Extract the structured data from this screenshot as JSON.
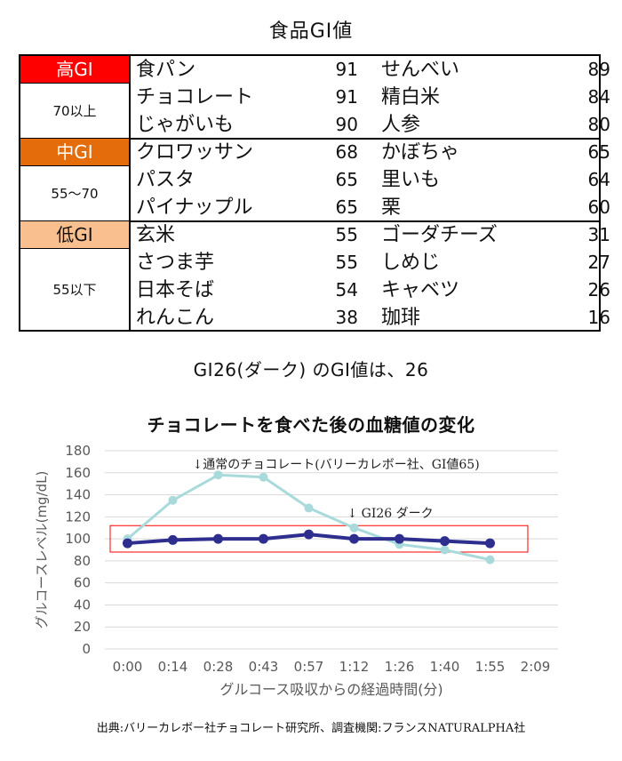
{
  "table": {
    "title": "食品GI値",
    "bands": [
      {
        "label": "高GI",
        "range": "70以上",
        "color": "#ff0000",
        "text_color": "#ffffff",
        "rows": [
          [
            {
              "food": "食パン",
              "gi": "91"
            },
            {
              "food": "せんべい",
              "gi": "89"
            }
          ],
          [
            {
              "food": "チョコレート",
              "gi": "91"
            },
            {
              "food": "精白米",
              "gi": "84"
            }
          ],
          [
            {
              "food": "じゃがいも",
              "gi": "90"
            },
            {
              "food": "人参",
              "gi": "80"
            }
          ]
        ]
      },
      {
        "label": "中GI",
        "range": "55〜70",
        "color": "#e46c0a",
        "text_color": "#ffffff",
        "rows": [
          [
            {
              "food": "クロワッサン",
              "gi": "68"
            },
            {
              "food": "かぼちゃ",
              "gi": "65"
            }
          ],
          [
            {
              "food": "パスタ",
              "gi": "65"
            },
            {
              "food": "里いも",
              "gi": "64"
            }
          ],
          [
            {
              "food": "パイナップル",
              "gi": "65"
            },
            {
              "food": "栗",
              "gi": "60"
            }
          ]
        ]
      },
      {
        "label": "低GI",
        "range": "55以下",
        "color": "#fabf8f",
        "text_color": "#111111",
        "rows": [
          [
            {
              "food": "玄米",
              "gi": "55"
            },
            {
              "food": "ゴーダチーズ",
              "gi": "31"
            }
          ],
          [
            {
              "food": "さつま芋",
              "gi": "55"
            },
            {
              "food": "しめじ",
              "gi": "27"
            }
          ],
          [
            {
              "food": "日本そば",
              "gi": "54"
            },
            {
              "food": "キャベツ",
              "gi": "26"
            }
          ],
          [
            {
              "food": "れんこん",
              "gi": "38"
            },
            {
              "food": "珈琲",
              "gi": "16"
            }
          ]
        ]
      }
    ]
  },
  "note": "GI26(ダーク) のGI値は、26",
  "chart_data": {
    "type": "line",
    "title": "チョコレートを食べた後の血糖値の変化",
    "xlabel": "グルコース吸収からの経過時間(分)",
    "ylabel": "グルコースレベル(mg/dL)",
    "categories": [
      "0:00",
      "0:14",
      "0:28",
      "0:43",
      "0:57",
      "1:12",
      "1:26",
      "1:40",
      "1:55",
      "2:09"
    ],
    "ylim": [
      0,
      180
    ],
    "yticks": [
      0,
      20,
      40,
      60,
      80,
      100,
      120,
      140,
      160,
      180
    ],
    "grid": true,
    "series": [
      {
        "name": "通常のチョコレート",
        "values": [
          100,
          135,
          158,
          156,
          128,
          110,
          95,
          90,
          81,
          null
        ],
        "color": "#a8dadc"
      },
      {
        "name": "GI26 ダーク",
        "values": [
          96,
          99,
          100,
          100,
          104,
          100,
          100,
          98,
          96,
          null
        ],
        "color": "#2e2e8f"
      }
    ],
    "annotations": [
      {
        "text": "↓通常のチョコレート(バリーカレボー社、GI値65)"
      },
      {
        "text": "↓ GI26 ダーク"
      }
    ],
    "highlight": {
      "y_range": [
        88,
        112
      ],
      "color": "#ff0000"
    }
  },
  "source": "出典:バリーカレボー社チョコレート研究所、調査機関:フランスNATURALPHA社"
}
